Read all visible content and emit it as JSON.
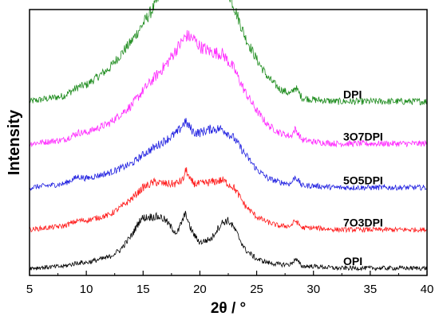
{
  "chart_data": {
    "type": "line",
    "title": "",
    "xlabel": "2θ / °",
    "ylabel": "Intensity",
    "xlim": [
      5,
      40
    ],
    "xticks": [
      5,
      10,
      15,
      20,
      25,
      30,
      35,
      40
    ],
    "x_tick_labels": [
      "5",
      "10",
      "15",
      "20",
      "25",
      "30",
      "35",
      "40"
    ],
    "y_ticks_shown": false,
    "grid": false,
    "legend": "inline labels at right end of each curve",
    "series": [
      {
        "name": "DPI",
        "color": "#1e8c1e",
        "x": [
          5,
          8,
          9.3,
          10,
          12,
          14,
          16,
          17,
          18,
          19,
          19.5,
          20,
          21,
          22,
          23,
          24,
          25,
          26,
          27,
          28,
          28.4,
          29,
          30,
          32,
          35,
          40
        ],
        "y": [
          20,
          23,
          28,
          29,
          38,
          53,
          72,
          85,
          102,
          115,
          118,
          115,
          99,
          88,
          72,
          55,
          43,
          33,
          27,
          24,
          28,
          22,
          21,
          20,
          20,
          20
        ]
      },
      {
        "name": "3O7DPI",
        "color": "#ff2bff",
        "x": [
          5,
          8,
          9.3,
          10,
          12,
          14,
          15,
          16,
          17,
          18,
          18.8,
          19.5,
          20,
          21,
          22,
          23,
          24,
          25,
          26,
          27,
          28,
          28.4,
          29,
          30,
          32,
          35,
          40
        ],
        "y": [
          14,
          16,
          20,
          20,
          25,
          35,
          43,
          50,
          57,
          66,
          73,
          71,
          67,
          64,
          63,
          55,
          42,
          32,
          24,
          20,
          18,
          22,
          16,
          15,
          14,
          14,
          14
        ]
      },
      {
        "name": "5O5DPI",
        "color": "#1f1fe0",
        "x": [
          5,
          8,
          9.3,
          10,
          12,
          14,
          15,
          16,
          17,
          18,
          18.7,
          19.5,
          20,
          21,
          22,
          23,
          24,
          25,
          26,
          27,
          28,
          28.4,
          29,
          30,
          32,
          35,
          40
        ],
        "y": [
          8,
          10,
          14,
          13,
          16,
          21,
          26,
          30,
          34,
          38,
          44,
          38,
          38,
          40,
          40,
          35,
          26,
          18,
          13,
          11,
          10,
          14,
          9,
          9,
          8,
          8,
          8
        ]
      },
      {
        "name": "7O3DPI",
        "color": "#ff1a1a",
        "x": [
          5,
          8,
          9.3,
          10,
          12,
          13,
          14,
          15,
          16,
          17,
          17.8,
          18.5,
          18.8,
          19.1,
          19.6,
          20,
          21,
          22,
          23,
          24,
          25,
          26,
          27,
          28,
          28.4,
          29,
          30,
          32,
          35,
          40
        ],
        "y": [
          3,
          5,
          8,
          8,
          11,
          15,
          20,
          26,
          29,
          28,
          28,
          30,
          36,
          30,
          28,
          28,
          29,
          30,
          26,
          16,
          10,
          7,
          5,
          5,
          8,
          4,
          4,
          3,
          3,
          3
        ]
      },
      {
        "name": "OPI",
        "color": "#000000",
        "x": [
          5,
          8,
          9.3,
          10,
          12,
          13,
          14,
          14.8,
          15.5,
          16.5,
          17,
          17.5,
          18,
          18.6,
          18.8,
          19,
          19.5,
          20,
          21,
          21.5,
          22,
          22.5,
          23,
          24,
          25,
          26,
          27,
          28,
          28.4,
          29,
          30,
          32,
          35,
          40
        ],
        "y": [
          0,
          1,
          3,
          3,
          6,
          10,
          18,
          27,
          28,
          28,
          26,
          22,
          19,
          28,
          30,
          24,
          18,
          14,
          16,
          21,
          25,
          26,
          22,
          10,
          5,
          3,
          2,
          2,
          5,
          1,
          1,
          0,
          0,
          0
        ]
      }
    ]
  }
}
